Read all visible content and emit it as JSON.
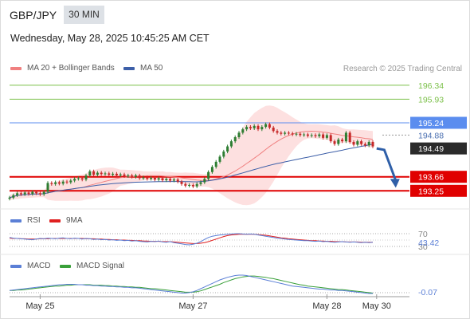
{
  "header": {
    "symbol": "GBP/JPY",
    "timeframe": "30 MIN",
    "datetime": "Wednesday, May 28, 2025 10:45:25 AM CET"
  },
  "legend": {
    "ma20_label": "MA 20 + Bollinger Bands",
    "ma50_label": "MA 50",
    "credit": "Research © 2025 Trading Central",
    "rsi_label": "RSI",
    "ma9_label": "9MA",
    "macd_label": "MACD",
    "macd_signal_label": "MACD Signal"
  },
  "colors": {
    "ma20": "#f08080",
    "ma50": "#3d5fa8",
    "rsi": "#5b7fd6",
    "ma9": "#e02020",
    "macd": "#5b7fd6",
    "macd_signal": "#3aa03a",
    "resistance_green": "#7cc04a",
    "pivot_blue": "#5b8def",
    "support_red": "#e00000",
    "up_candle": "#2e7d32",
    "down_candle": "#c62828",
    "bollinger_fill": "#fde0e0"
  },
  "chart_data": [
    {
      "type": "candlestick",
      "name": "price",
      "ylim": [
        193.0,
        196.5
      ],
      "x_ticks": [
        {
          "label": "May 25",
          "index": 8
        },
        {
          "label": "May 27",
          "index": 48
        },
        {
          "label": "May 28",
          "index": 83
        },
        {
          "label": "May 30",
          "index": 96
        }
      ],
      "closes": [
        193.05,
        193.12,
        193.18,
        193.15,
        193.2,
        193.16,
        193.22,
        193.18,
        193.15,
        193.22,
        193.48,
        193.45,
        193.5,
        193.46,
        193.52,
        193.5,
        193.55,
        193.6,
        193.62,
        193.58,
        193.7,
        193.82,
        193.72,
        193.78,
        193.74,
        193.76,
        193.72,
        193.75,
        193.7,
        193.73,
        193.68,
        193.7,
        193.66,
        193.7,
        193.62,
        193.64,
        193.6,
        193.63,
        193.58,
        193.62,
        193.56,
        193.6,
        193.55,
        193.58,
        193.52,
        193.45,
        193.4,
        193.42,
        193.38,
        193.45,
        193.5,
        193.6,
        193.8,
        193.95,
        194.1,
        194.25,
        194.4,
        194.55,
        194.7,
        194.82,
        194.95,
        195.05,
        195.12,
        195.08,
        195.15,
        195.05,
        195.12,
        195.2,
        195.1,
        195.0,
        194.95,
        194.92,
        194.95,
        194.93,
        194.9,
        194.92,
        194.88,
        194.9,
        194.86,
        194.88,
        194.85,
        194.9,
        194.8,
        194.88,
        194.7,
        194.62,
        194.75,
        194.7,
        194.95,
        194.68,
        194.6,
        194.7,
        194.62,
        194.58,
        194.68,
        194.55
      ],
      "levels": [
        {
          "value": 196.34,
          "label": "196.34",
          "role": "resistance"
        },
        {
          "value": 195.93,
          "label": "195.93",
          "role": "resistance"
        },
        {
          "value": 195.24,
          "label": "195.24",
          "role": "pivot"
        },
        {
          "value": 194.88,
          "label": "194.88",
          "role": "current_ref"
        },
        {
          "value": 194.49,
          "label": "194.49",
          "role": "last_price"
        },
        {
          "value": 193.66,
          "label": "193.66",
          "role": "support"
        },
        {
          "value": 193.25,
          "label": "193.25",
          "role": "support"
        }
      ],
      "forecast": [
        {
          "index": 96,
          "value": 194.49
        },
        {
          "index": 98,
          "value": 194.45
        },
        {
          "index": 101,
          "value": 193.55
        }
      ]
    },
    {
      "type": "line",
      "name": "RSI",
      "ylim": [
        20,
        80
      ],
      "levels": [
        {
          "value": 70,
          "label": "70"
        },
        {
          "value": 30,
          "label": "30"
        }
      ],
      "last_value_label": "43.42",
      "rsi": [
        58,
        56,
        55,
        54,
        53,
        52,
        51,
        53,
        55,
        54,
        56,
        55,
        54,
        56,
        57,
        55,
        54,
        56,
        55,
        53,
        55,
        54,
        52,
        53,
        51,
        52,
        50,
        51,
        49,
        50,
        48,
        49,
        47,
        48,
        46,
        45,
        44,
        46,
        45,
        47,
        44,
        43,
        45,
        42,
        40,
        38,
        36,
        35,
        37,
        40,
        45,
        52,
        58,
        62,
        64,
        66,
        67,
        68,
        69,
        70,
        70,
        69,
        68,
        69,
        68,
        66,
        64,
        62,
        60,
        58,
        56,
        55,
        53,
        52,
        51,
        50,
        49,
        48,
        48,
        47,
        46,
        47,
        45,
        46,
        44,
        43,
        44,
        45,
        44,
        43,
        44,
        43,
        42,
        43,
        42,
        43
      ],
      "ma9": [
        56,
        55,
        55,
        54,
        54,
        53,
        53,
        53,
        54,
        54,
        54,
        55,
        55,
        55,
        55,
        55,
        55,
        55,
        55,
        55,
        54,
        54,
        54,
        53,
        53,
        52,
        52,
        51,
        51,
        50,
        50,
        49,
        49,
        48,
        48,
        47,
        47,
        46,
        46,
        46,
        45,
        45,
        45,
        44,
        43,
        42,
        41,
        40,
        39,
        39,
        40,
        42,
        45,
        49,
        53,
        57,
        61,
        64,
        66,
        67,
        68,
        68,
        68,
        68,
        68,
        67,
        66,
        65,
        63,
        61,
        59,
        57,
        56,
        54,
        53,
        52,
        51,
        50,
        49,
        48,
        48,
        47,
        47,
        46,
        46,
        45,
        45,
        45,
        44,
        44,
        44,
        44,
        43,
        43,
        43,
        43
      ]
    },
    {
      "type": "line",
      "name": "MACD",
      "last_value_label": "-0.07",
      "macd": [
        0.0,
        0.01,
        0.02,
        0.03,
        0.04,
        0.05,
        0.06,
        0.07,
        0.08,
        0.09,
        0.1,
        0.11,
        0.12,
        0.13,
        0.13,
        0.14,
        0.14,
        0.14,
        0.13,
        0.13,
        0.12,
        0.12,
        0.11,
        0.11,
        0.1,
        0.1,
        0.09,
        0.09,
        0.08,
        0.08,
        0.07,
        0.07,
        0.06,
        0.06,
        0.05,
        0.04,
        0.03,
        0.02,
        0.01,
        0.0,
        -0.01,
        -0.02,
        -0.03,
        -0.04,
        -0.05,
        -0.06,
        -0.06,
        -0.05,
        -0.03,
        0.0,
        0.04,
        0.08,
        0.12,
        0.16,
        0.2,
        0.24,
        0.27,
        0.3,
        0.32,
        0.34,
        0.35,
        0.35,
        0.34,
        0.32,
        0.3,
        0.28,
        0.26,
        0.24,
        0.22,
        0.2,
        0.18,
        0.16,
        0.14,
        0.12,
        0.1,
        0.09,
        0.08,
        0.07,
        0.06,
        0.05,
        0.04,
        0.03,
        0.03,
        0.02,
        0.01,
        0.01,
        0.0,
        0.0,
        -0.01,
        -0.02,
        -0.03,
        -0.04,
        -0.05,
        -0.06,
        -0.07,
        -0.07
      ],
      "signal": [
        0.0,
        0.0,
        0.01,
        0.01,
        0.02,
        0.03,
        0.04,
        0.05,
        0.06,
        0.07,
        0.08,
        0.09,
        0.1,
        0.1,
        0.11,
        0.12,
        0.12,
        0.13,
        0.13,
        0.13,
        0.13,
        0.13,
        0.12,
        0.12,
        0.12,
        0.11,
        0.11,
        0.1,
        0.1,
        0.09,
        0.09,
        0.08,
        0.08,
        0.07,
        0.07,
        0.06,
        0.05,
        0.04,
        0.04,
        0.03,
        0.02,
        0.01,
        0.0,
        -0.01,
        -0.02,
        -0.03,
        -0.04,
        -0.04,
        -0.04,
        -0.03,
        -0.01,
        0.02,
        0.05,
        0.08,
        0.11,
        0.14,
        0.18,
        0.21,
        0.24,
        0.27,
        0.29,
        0.31,
        0.32,
        0.33,
        0.33,
        0.32,
        0.31,
        0.3,
        0.28,
        0.27,
        0.25,
        0.23,
        0.21,
        0.19,
        0.17,
        0.15,
        0.13,
        0.12,
        0.1,
        0.09,
        0.08,
        0.07,
        0.06,
        0.05,
        0.04,
        0.03,
        0.02,
        0.02,
        0.01,
        0.0,
        -0.01,
        -0.02,
        -0.03,
        -0.04,
        -0.05,
        -0.06
      ]
    }
  ]
}
